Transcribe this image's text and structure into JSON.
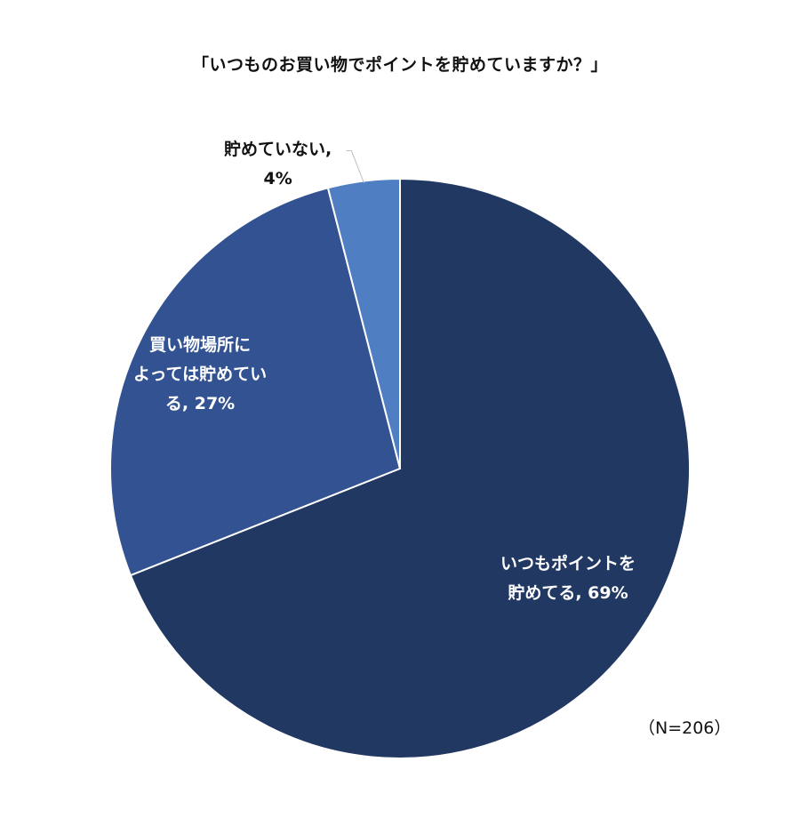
{
  "chart_data": {
    "type": "pie",
    "title": "「いつものお買い物でポイントを貯めていますか？」",
    "note": "（N=206）",
    "slices": [
      {
        "label_line1": "いつもポイントを",
        "label_line2": "貯めてる, 69%",
        "value": 69,
        "color": "#213862"
      },
      {
        "label_line1": "買い物場所に",
        "label_line2": "よっては貯めてい",
        "label_line3": "る, 27%",
        "value": 27,
        "color": "#325291"
      },
      {
        "label_line1": "貯めていない,",
        "label_line2": "4%",
        "value": 4,
        "color": "#4f7ec2"
      }
    ],
    "colors": {
      "border": "#ffffff",
      "leader": "#bfbfbf"
    }
  }
}
